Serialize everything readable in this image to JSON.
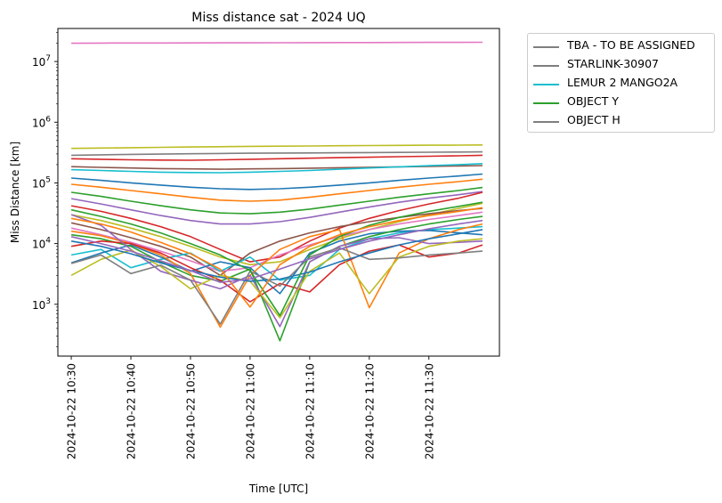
{
  "chart_data": {
    "type": "line",
    "title": "Miss distance sat - 2024 UQ",
    "xlabel": "Time [UTC]",
    "ylabel": "Miss Distance [km]",
    "yscale": "log",
    "ylim": [
      140,
      35000000
    ],
    "xlim": [
      "2024-10-22 10:27:45",
      "2024-10-22 11:41:50"
    ],
    "xticks": [
      "2024-10-22 10:30",
      "2024-10-22 10:40",
      "2024-10-22 10:50",
      "2024-10-22 11:00",
      "2024-10-22 11:10",
      "2024-10-22 11:20",
      "2024-10-22 11:30"
    ],
    "yticks": [
      "10^3",
      "10^4",
      "10^5",
      "10^6",
      "10^7"
    ],
    "legend_position": "outside-top-right",
    "legend": [
      {
        "label": "TBA - TO BE ASSIGNED",
        "color": "#7f7f7f"
      },
      {
        "label": "STARLINK-30907",
        "color": "#7f7f7f"
      },
      {
        "label": "LEMUR 2 MANGO2A",
        "color": "#17becf"
      },
      {
        "label": "OBJECT Y",
        "color": "#2ca02c"
      },
      {
        "label": "OBJECT H",
        "color": "#7f7f7f"
      }
    ],
    "x": [
      "10:30",
      "10:35",
      "10:40",
      "10:45",
      "10:50",
      "10:55",
      "11:00",
      "11:05",
      "11:10",
      "11:15",
      "11:20",
      "11:25",
      "11:30",
      "11:35",
      "11:39"
    ],
    "series": [
      {
        "color": "#e377c2",
        "values": [
          20000000,
          20100000,
          20150000,
          20200000,
          20250000,
          20300000,
          20350000,
          20400000,
          20450000,
          20500000,
          20550000,
          20600000,
          20650000,
          20700000,
          20750000
        ]
      },
      {
        "color": "#bcbd22",
        "values": [
          370000,
          375000,
          380000,
          385000,
          390000,
          395000,
          400000,
          403000,
          406000,
          409000,
          412000,
          415000,
          418000,
          420000,
          422000
        ]
      },
      {
        "color": "#7f7f7f",
        "values": [
          285000,
          290000,
          295000,
          298000,
          302000,
          305000,
          308000,
          310000,
          312000,
          314000,
          316000,
          318000,
          320000,
          322000,
          324000
        ]
      },
      {
        "color": "#d62728",
        "values": [
          250000,
          245000,
          240000,
          238000,
          236000,
          240000,
          245000,
          250000,
          255000,
          260000,
          265000,
          270000,
          275000,
          280000,
          285000
        ]
      },
      {
        "color": "#8c564b",
        "values": [
          185000,
          180000,
          176000,
          172000,
          170000,
          168000,
          170000,
          172000,
          175000,
          178000,
          181000,
          184000,
          187000,
          190000,
          193000
        ]
      },
      {
        "color": "#17becf",
        "values": [
          165000,
          160000,
          155000,
          150000,
          148000,
          147000,
          150000,
          155000,
          160000,
          168000,
          176000,
          184000,
          192000,
          200000,
          208000
        ]
      },
      {
        "color": "#1f77b4",
        "values": [
          120000,
          110000,
          100000,
          92000,
          85000,
          80000,
          78000,
          80000,
          85000,
          92000,
          100000,
          110000,
          120000,
          130000,
          140000
        ]
      },
      {
        "color": "#ff7f0e",
        "values": [
          95000,
          85000,
          75000,
          66000,
          58000,
          52000,
          50000,
          52000,
          58000,
          66000,
          75000,
          85000,
          95000,
          105000,
          115000
        ]
      },
      {
        "color": "#2ca02c",
        "values": [
          70000,
          60000,
          50000,
          42000,
          36000,
          32000,
          31000,
          33000,
          37000,
          43000,
          50000,
          58000,
          66000,
          75000,
          84000
        ]
      },
      {
        "color": "#9467bd",
        "values": [
          55000,
          45000,
          36000,
          29000,
          24000,
          21000,
          21000,
          23000,
          27000,
          33000,
          40000,
          48000,
          56000,
          64000,
          72000
        ]
      },
      {
        "color": "#d62728",
        "values": [
          42000,
          34000,
          26000,
          19000,
          13000,
          8000,
          5000,
          6000,
          11000,
          18000,
          26000,
          35000,
          45000,
          56000,
          70000
        ]
      },
      {
        "color": "#bcbd22",
        "values": [
          30000,
          24000,
          18000,
          13000,
          9000,
          6000,
          4500,
          5000,
          8000,
          12000,
          17000,
          23000,
          30000,
          38000,
          46000
        ]
      },
      {
        "color": "#8c564b",
        "values": [
          22000,
          17000,
          12500,
          9000,
          6000,
          3000,
          7000,
          11000,
          15000,
          19000,
          23000,
          27000,
          31000,
          35000,
          38000
        ]
      },
      {
        "color": "#e377c2",
        "values": [
          18000,
          14000,
          10500,
          7500,
          5200,
          3500,
          4000,
          6500,
          9500,
          13000,
          17000,
          21000,
          25000,
          29000,
          33000
        ]
      },
      {
        "color": "#17becf",
        "values": [
          6500,
          8000,
          4000,
          5500,
          7000,
          3500,
          6000,
          2500,
          3000,
          8000,
          12000,
          15000,
          17000,
          18000,
          19000
        ]
      },
      {
        "color": "#1f77b4",
        "values": [
          4800,
          7000,
          9500,
          6000,
          3500,
          5000,
          4000,
          1500,
          7000,
          11000,
          14500,
          16000,
          16500,
          15000,
          14000
        ]
      },
      {
        "color": "#2ca02c",
        "values": [
          14000,
          12000,
          9000,
          5000,
          3000,
          2400,
          3800,
          250,
          5000,
          9000,
          13000,
          17000,
          21000,
          25000,
          28000
        ]
      },
      {
        "color": "#ff7f0e",
        "values": [
          16000,
          13500,
          10000,
          6500,
          3200,
          420,
          3000,
          8000,
          13000,
          17000,
          880,
          7000,
          12000,
          17000,
          21000
        ]
      },
      {
        "color": "#d62728",
        "values": [
          9000,
          11000,
          10000,
          7000,
          4000,
          2500,
          1100,
          2200,
          1600,
          4500,
          7500,
          9500,
          6000,
          7000,
          9500
        ]
      },
      {
        "color": "#9467bd",
        "values": [
          30000,
          20000,
          8000,
          3500,
          2500,
          1800,
          3000,
          430,
          5000,
          9000,
          12000,
          12500,
          10000,
          10500,
          11000
        ]
      },
      {
        "color": "#bcbd22",
        "values": [
          3000,
          5500,
          7800,
          4200,
          1800,
          3000,
          2400,
          600,
          3500,
          7000,
          1500,
          6000,
          9000,
          11000,
          12000
        ]
      },
      {
        "color": "#7f7f7f",
        "values": [
          4700,
          6500,
          3200,
          4400,
          2500,
          470,
          3500,
          2000,
          6000,
          8500,
          5500,
          5800,
          6500,
          7000,
          7500
        ]
      },
      {
        "color": "#1f77b4",
        "values": [
          11000,
          9000,
          6800,
          4800,
          3600,
          2800,
          2400,
          2600,
          3400,
          5000,
          7000,
          9500,
          12000,
          14500,
          17000
        ]
      },
      {
        "color": "#2ca02c",
        "values": [
          36000,
          28000,
          21000,
          15000,
          10000,
          6500,
          3600,
          650,
          6500,
          13000,
          20000,
          27000,
          34000,
          41000,
          48000
        ]
      },
      {
        "color": "#ff7f0e",
        "values": [
          26000,
          21000,
          15500,
          10500,
          6800,
          3800,
          900,
          4500,
          9000,
          14000,
          19000,
          24000,
          29000,
          34000,
          39000
        ]
      },
      {
        "color": "#9467bd",
        "values": [
          13000,
          10000,
          7500,
          5200,
          3600,
          2300,
          2600,
          3800,
          5600,
          8000,
          11000,
          14000,
          17500,
          21000,
          24000
        ]
      }
    ]
  }
}
